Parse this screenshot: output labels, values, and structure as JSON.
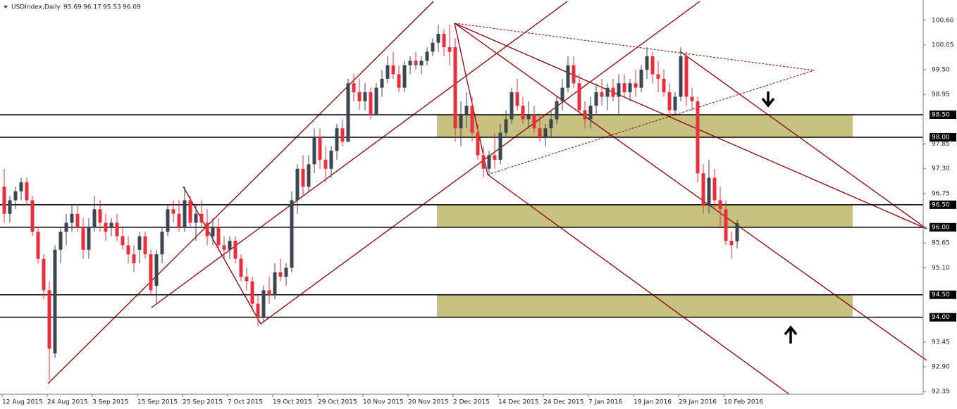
{
  "chart_data": {
    "type": "candlestick",
    "title": "USDIndex,Daily",
    "categories": [
      "12 Aug 2015",
      null,
      null,
      null,
      null,
      null,
      null,
      null,
      "24 Aug 2015",
      null,
      null,
      null,
      null,
      null,
      null,
      null,
      "3 Sep 2015",
      null,
      null,
      null,
      null,
      null,
      null,
      null,
      "15 Sep 2015",
      null,
      null,
      null,
      null,
      null,
      null,
      null,
      "25 Sep 2015",
      null,
      null,
      null,
      null,
      null,
      null,
      null,
      "7 Oct 2015",
      null,
      null,
      null,
      null,
      null,
      null,
      null,
      "19 Oct 2015",
      null,
      null,
      null,
      null,
      null,
      null,
      null,
      "29 Oct 2015",
      null,
      null,
      null,
      null,
      null,
      null,
      null,
      "10 Nov 2015",
      null,
      null,
      null,
      null,
      null,
      null,
      null,
      "20 Nov 2015",
      null,
      null,
      null,
      null,
      null,
      null,
      null,
      "2 Dec 2015",
      null,
      null,
      null,
      null,
      null,
      null,
      null,
      "14 Dec 2015",
      null,
      null,
      null,
      null,
      null,
      null,
      null,
      "24 Dec 2015",
      null,
      null,
      null,
      null,
      null,
      null,
      null,
      "7 Jan 2016",
      null,
      null,
      null,
      null,
      null,
      null,
      null,
      "19 Jan 2016",
      null,
      null,
      null,
      null,
      null,
      null,
      null,
      "29 Jan 2016",
      null,
      null,
      null,
      null,
      null,
      null,
      null,
      "10 Feb 2016",
      null,
      null
    ],
    "ohlc": [
      [
        96.9,
        97.3,
        96.1,
        96.3
      ],
      [
        96.3,
        96.7,
        96.1,
        96.6
      ],
      [
        96.6,
        96.9,
        96.4,
        96.8
      ],
      [
        96.8,
        97.1,
        96.6,
        97.0
      ],
      [
        97.0,
        97.1,
        96.5,
        96.6
      ],
      [
        96.6,
        96.7,
        95.8,
        95.9
      ],
      [
        95.9,
        96.0,
        95.2,
        95.3
      ],
      [
        95.3,
        95.4,
        94.4,
        94.6
      ],
      [
        94.6,
        94.8,
        92.6,
        93.3
      ],
      [
        93.2,
        95.6,
        93.1,
        95.5
      ],
      [
        95.5,
        96.0,
        95.2,
        95.9
      ],
      [
        95.9,
        96.3,
        95.6,
        96.1
      ],
      [
        96.1,
        96.5,
        95.9,
        96.3
      ],
      [
        96.3,
        96.5,
        95.9,
        96.0
      ],
      [
        96.0,
        96.2,
        95.3,
        95.5
      ],
      [
        95.5,
        96.2,
        95.3,
        96.0
      ],
      [
        96.0,
        96.7,
        95.9,
        96.4
      ],
      [
        96.4,
        96.6,
        95.9,
        96.1
      ],
      [
        96.1,
        96.3,
        95.7,
        95.9
      ],
      [
        96.0,
        96.2,
        95.8,
        96.1
      ],
      [
        96.1,
        96.3,
        95.7,
        95.8
      ],
      [
        95.8,
        96.0,
        95.5,
        95.6
      ],
      [
        95.6,
        95.8,
        95.2,
        95.4
      ],
      [
        95.4,
        95.6,
        95.0,
        95.2
      ],
      [
        95.5,
        95.9,
        95.2,
        95.8
      ],
      [
        95.8,
        95.9,
        95.3,
        95.4
      ],
      [
        95.4,
        95.5,
        94.5,
        94.6
      ],
      [
        94.7,
        95.5,
        94.3,
        95.4
      ],
      [
        95.4,
        96.0,
        95.2,
        95.9
      ],
      [
        95.9,
        96.5,
        95.8,
        96.4
      ],
      [
        96.4,
        96.6,
        96.1,
        96.3
      ],
      [
        96.3,
        96.6,
        95.9,
        96.0
      ],
      [
        96.0,
        96.9,
        95.9,
        96.6
      ],
      [
        96.6,
        96.7,
        96.0,
        96.1
      ],
      [
        96.1,
        96.5,
        95.7,
        96.3
      ],
      [
        96.3,
        96.6,
        96.0,
        96.1
      ],
      [
        96.1,
        96.4,
        95.6,
        95.8
      ],
      [
        95.8,
        96.2,
        95.6,
        96.0
      ],
      [
        96.0,
        96.2,
        95.5,
        95.6
      ],
      [
        95.6,
        95.8,
        95.3,
        95.5
      ],
      [
        95.5,
        95.8,
        95.3,
        95.7
      ],
      [
        95.7,
        95.8,
        95.2,
        95.3
      ],
      [
        95.3,
        95.4,
        94.8,
        94.9
      ],
      [
        94.9,
        95.1,
        94.6,
        94.8
      ],
      [
        94.8,
        94.9,
        94.2,
        94.3
      ],
      [
        94.3,
        94.5,
        93.8,
        94.0
      ],
      [
        94.0,
        94.7,
        93.9,
        94.6
      ],
      [
        94.6,
        94.9,
        94.3,
        94.5
      ],
      [
        94.5,
        95.2,
        94.4,
        95.0
      ],
      [
        95.0,
        95.3,
        94.8,
        94.9
      ],
      [
        94.9,
        95.2,
        94.7,
        95.1
      ],
      [
        95.1,
        96.8,
        95.0,
        96.6
      ],
      [
        96.6,
        97.4,
        96.3,
        97.3
      ],
      [
        97.3,
        97.6,
        96.7,
        96.9
      ],
      [
        96.9,
        97.6,
        96.8,
        97.4
      ],
      [
        97.4,
        98.2,
        97.2,
        98.0
      ],
      [
        98.0,
        98.2,
        97.3,
        97.5
      ],
      [
        97.5,
        97.8,
        97.0,
        97.3
      ],
      [
        97.3,
        97.8,
        97.1,
        97.7
      ],
      [
        97.7,
        98.3,
        97.5,
        98.2
      ],
      [
        98.2,
        98.4,
        97.8,
        97.9
      ],
      [
        97.9,
        99.3,
        97.9,
        99.2
      ],
      [
        99.2,
        99.4,
        98.8,
        99.0
      ],
      [
        99.0,
        99.3,
        98.6,
        98.8
      ],
      [
        98.8,
        99.2,
        98.6,
        99.0
      ],
      [
        99.0,
        99.1,
        98.4,
        98.5
      ],
      [
        98.5,
        99.2,
        98.5,
        99.1
      ],
      [
        99.1,
        99.5,
        98.9,
        99.3
      ],
      [
        99.3,
        99.8,
        99.2,
        99.6
      ],
      [
        99.6,
        99.9,
        99.3,
        99.4
      ],
      [
        99.4,
        99.6,
        99.0,
        99.1
      ],
      [
        99.1,
        99.7,
        99.0,
        99.6
      ],
      [
        99.6,
        99.8,
        99.4,
        99.7
      ],
      [
        99.7,
        99.9,
        99.5,
        99.6
      ],
      [
        99.6,
        99.8,
        99.4,
        99.7
      ],
      [
        99.7,
        100.0,
        99.6,
        99.9
      ],
      [
        99.9,
        100.2,
        99.8,
        100.1
      ],
      [
        100.1,
        100.5,
        99.9,
        100.3
      ],
      [
        100.3,
        100.4,
        99.8,
        100.0
      ],
      [
        100.0,
        100.5,
        99.6,
        99.9
      ],
      [
        100.0,
        100.2,
        97.9,
        98.2
      ],
      [
        98.2,
        98.8,
        97.8,
        98.5
      ],
      [
        98.5,
        99.0,
        98.2,
        98.7
      ],
      [
        98.7,
        98.9,
        97.9,
        98.1
      ],
      [
        98.1,
        98.3,
        97.5,
        97.6
      ],
      [
        97.6,
        97.8,
        97.1,
        97.3
      ],
      [
        97.3,
        97.7,
        97.2,
        97.6
      ],
      [
        97.6,
        98.1,
        97.3,
        97.5
      ],
      [
        97.5,
        98.3,
        97.4,
        98.1
      ],
      [
        98.1,
        98.6,
        98.0,
        98.4
      ],
      [
        98.4,
        99.1,
        98.3,
        99.0
      ],
      [
        99.0,
        99.3,
        98.6,
        98.7
      ],
      [
        98.7,
        98.9,
        98.3,
        98.4
      ],
      [
        98.4,
        98.8,
        98.2,
        98.5
      ],
      [
        98.5,
        98.7,
        98.1,
        98.2
      ],
      [
        98.2,
        98.5,
        97.9,
        98.0
      ],
      [
        98.0,
        98.3,
        97.8,
        98.2
      ],
      [
        98.2,
        98.6,
        98.0,
        98.4
      ],
      [
        98.4,
        98.9,
        98.3,
        98.8
      ],
      [
        98.8,
        99.3,
        98.6,
        99.1
      ],
      [
        99.1,
        99.8,
        99.0,
        99.6
      ],
      [
        99.6,
        99.8,
        99.1,
        99.2
      ],
      [
        99.2,
        99.4,
        98.5,
        98.6
      ],
      [
        98.6,
        98.8,
        98.2,
        98.4
      ],
      [
        98.4,
        98.9,
        98.2,
        98.7
      ],
      [
        98.7,
        99.2,
        98.5,
        99.0
      ],
      [
        99.0,
        99.3,
        98.7,
        98.9
      ],
      [
        98.9,
        99.2,
        98.6,
        99.1
      ],
      [
        99.1,
        99.3,
        98.8,
        98.9
      ],
      [
        98.9,
        99.4,
        98.5,
        99.2
      ],
      [
        99.2,
        99.4,
        98.9,
        99.0
      ],
      [
        99.0,
        99.3,
        98.8,
        99.2
      ],
      [
        99.2,
        99.5,
        98.9,
        99.1
      ],
      [
        99.1,
        99.6,
        99.0,
        99.5
      ],
      [
        99.5,
        100.0,
        99.3,
        99.8
      ],
      [
        99.8,
        99.9,
        99.2,
        99.4
      ],
      [
        99.4,
        99.7,
        99.0,
        99.3
      ],
      [
        99.3,
        99.5,
        98.9,
        99.0
      ],
      [
        99.0,
        99.2,
        98.5,
        98.6
      ],
      [
        98.6,
        99.0,
        98.5,
        98.9
      ],
      [
        98.9,
        100.0,
        98.8,
        99.8
      ],
      [
        99.8,
        99.9,
        98.7,
        98.9
      ],
      [
        98.9,
        99.1,
        98.6,
        98.8
      ],
      [
        98.8,
        98.9,
        97.0,
        97.2
      ],
      [
        97.2,
        97.4,
        96.3,
        96.5
      ],
      [
        96.5,
        97.5,
        96.3,
        97.1
      ],
      [
        97.1,
        97.3,
        96.4,
        96.6
      ],
      [
        96.6,
        96.9,
        96.0,
        96.4
      ],
      [
        96.4,
        96.6,
        95.6,
        95.7
      ],
      [
        95.7,
        95.9,
        95.3,
        95.6
      ],
      [
        95.69,
        96.17,
        95.53,
        96.09
      ]
    ],
    "up_color": "#3c4651",
    "down_color": "#e8303c",
    "ylim": [
      92.29,
      101.05
    ],
    "yticks": [
      {
        "value": 100.6,
        "label": "100.60"
      },
      {
        "value": 100.05,
        "label": "100.05"
      },
      {
        "value": 99.5,
        "label": "99.50"
      },
      {
        "value": 98.95,
        "label": "98.95"
      },
      {
        "value": 97.85,
        "label": "97.85"
      },
      {
        "value": 97.3,
        "label": "97.30"
      },
      {
        "value": 96.75,
        "label": "96.75"
      },
      {
        "value": 95.65,
        "label": "95.65"
      },
      {
        "value": 95.1,
        "label": "95.10"
      },
      {
        "value": 93.45,
        "label": "93.45"
      },
      {
        "value": 92.9,
        "label": "92.90"
      },
      {
        "value": 92.35,
        "label": "92.35"
      }
    ],
    "levels": [
      {
        "value": 98.5,
        "label": "98.50"
      },
      {
        "value": 98.0,
        "label": "98.00"
      },
      {
        "value": 96.5,
        "label": "96.50"
      },
      {
        "value": 96.0,
        "label": "96.00"
      },
      {
        "value": 94.5,
        "label": "94.50"
      },
      {
        "value": 94.0,
        "label": "94.00"
      }
    ]
  }
}
